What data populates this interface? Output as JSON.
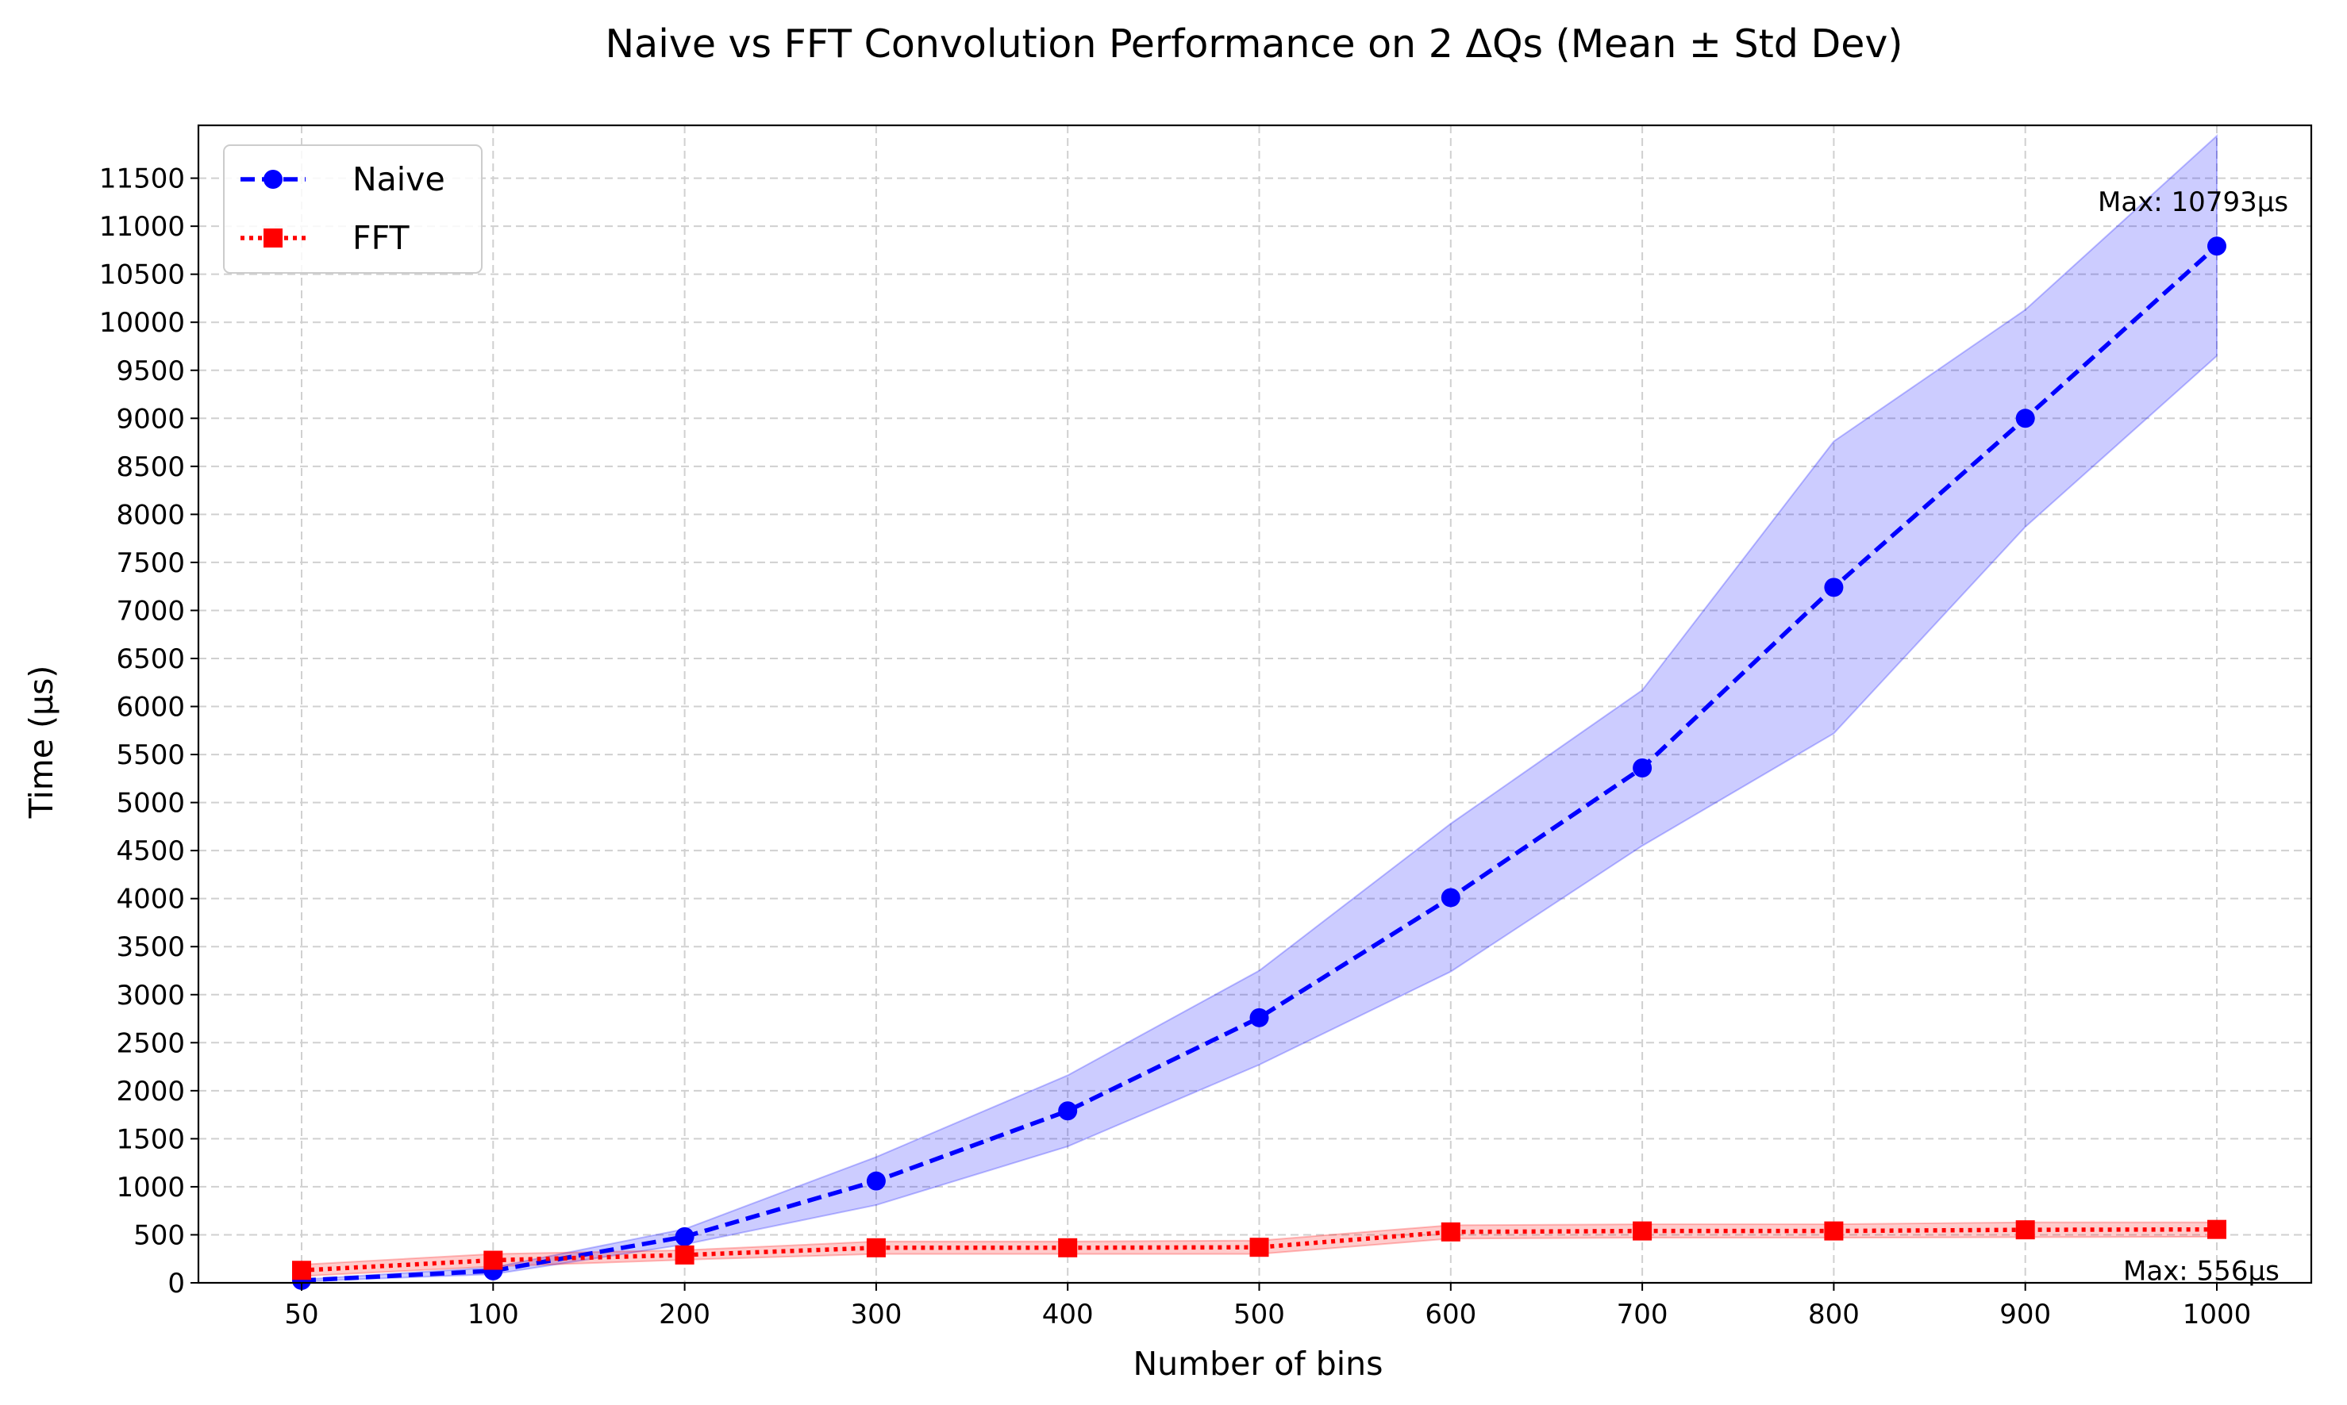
{
  "chart_data": {
    "type": "line",
    "title": "Naive vs FFT Convolution Performance on 2 ΔQs (Mean ± Std Dev)",
    "xlabel": "Number of bins",
    "ylabel": "Time (μs)",
    "categories": [
      "50",
      "100",
      "200",
      "300",
      "400",
      "500",
      "600",
      "700",
      "800",
      "900",
      "1000"
    ],
    "ylim": [
      0,
      12050
    ],
    "yticks": [
      0,
      500,
      1000,
      1500,
      2000,
      2500,
      3000,
      3500,
      4000,
      4500,
      5000,
      5500,
      6000,
      6500,
      7000,
      7500,
      8000,
      8500,
      9000,
      9500,
      10000,
      10500,
      11000,
      11500
    ],
    "grid": true,
    "legend_position": "top-left",
    "series": [
      {
        "name": "Naive",
        "color": "#0000ff",
        "band_color": "#0000ff",
        "marker": "circle",
        "line_style": "dashed",
        "values": [
          25,
          125,
          480,
          1060,
          1790,
          2760,
          4010,
          5360,
          7240,
          9000,
          10793
        ],
        "upper": [
          35,
          160,
          560,
          1310,
          2160,
          3250,
          4780,
          6170,
          8760,
          10130,
          11940
        ],
        "lower": [
          15,
          90,
          400,
          810,
          1420,
          2270,
          3240,
          4550,
          5720,
          7870,
          9650
        ]
      },
      {
        "name": "FFT",
        "color": "#ff0000",
        "band_color": "#ff0000",
        "marker": "square",
        "line_style": "dotted",
        "values": [
          130,
          235,
          290,
          365,
          365,
          370,
          530,
          540,
          540,
          552,
          556
        ],
        "upper": [
          190,
          300,
          340,
          430,
          430,
          440,
          600,
          610,
          610,
          630,
          630
        ],
        "lower": [
          70,
          170,
          240,
          300,
          300,
          300,
          460,
          470,
          470,
          475,
          480
        ]
      }
    ],
    "annotations": [
      {
        "text": "Max: 10793μs",
        "series": "Naive"
      },
      {
        "text": "Max: 556μs",
        "series": "FFT"
      }
    ]
  }
}
